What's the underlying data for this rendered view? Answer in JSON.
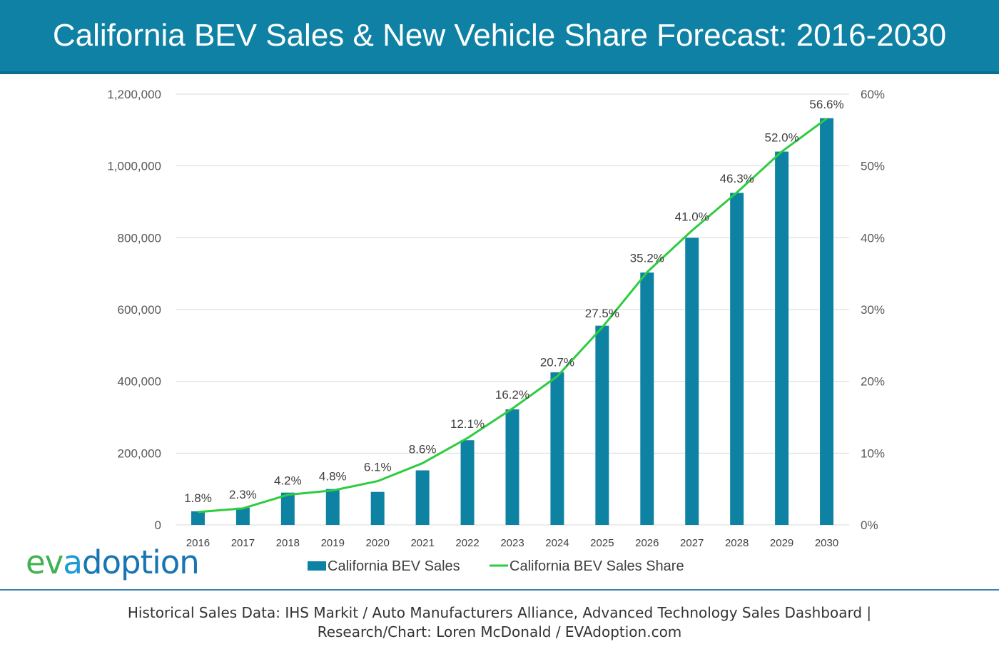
{
  "header": {
    "title": "California BEV Sales & New Vehicle Share Forecast: 2016-2030"
  },
  "logo": {
    "part1": "ev",
    "part2": "a",
    "part3": "doption"
  },
  "footer": {
    "line1": "Historical Sales Data: IHS Markit / Auto Manufacturers Alliance, Advanced Technology Sales Dashboard |",
    "line2": "Research/Chart: Loren McDonald / EVAdoption.com"
  },
  "colors": {
    "header_bg": "#0f81a4",
    "bar": "#0e82a3",
    "line": "#2ecc40",
    "grid": "#d9d9d9"
  },
  "chart_data": {
    "type": "bar",
    "categories": [
      "2016",
      "2017",
      "2018",
      "2019",
      "2020",
      "2021",
      "2022",
      "2023",
      "2024",
      "2025",
      "2026",
      "2027",
      "2028",
      "2029",
      "2030"
    ],
    "series": [
      {
        "name": "California BEV Sales",
        "type": "bar",
        "axis": "left",
        "values": [
          38000,
          48000,
          90000,
          100000,
          92000,
          152000,
          236000,
          322000,
          425000,
          555000,
          703000,
          800000,
          925000,
          1040000,
          1133000
        ]
      },
      {
        "name": "California BEV Sales Share",
        "type": "line",
        "axis": "right",
        "values": [
          1.8,
          2.3,
          4.2,
          4.8,
          6.1,
          8.6,
          12.1,
          16.2,
          20.7,
          27.5,
          35.2,
          41.0,
          46.3,
          52.0,
          56.6
        ],
        "labels": [
          "1.8%",
          "2.3%",
          "4.2%",
          "4.8%",
          "6.1%",
          "8.6%",
          "12.1%",
          "16.2%",
          "20.7%",
          "27.5%",
          "35.2%",
          "41.0%",
          "46.3%",
          "52.0%",
          "56.6%"
        ]
      }
    ],
    "y_left": {
      "min": 0,
      "max": 1200000,
      "ticks": [
        "0",
        "200,000",
        "400,000",
        "600,000",
        "800,000",
        "1,000,000",
        "1,200,000"
      ]
    },
    "y_right": {
      "min": 0,
      "max": 60,
      "ticks": [
        "0%",
        "10%",
        "20%",
        "30%",
        "40%",
        "50%",
        "60%"
      ]
    },
    "grid": true,
    "legend": "bottom"
  }
}
